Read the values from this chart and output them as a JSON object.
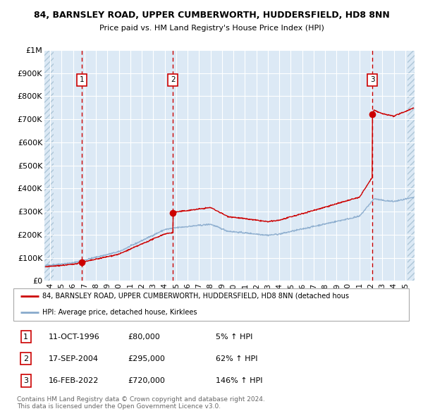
{
  "title1": "84, BARNSLEY ROAD, UPPER CUMBERWORTH, HUDDERSFIELD, HD8 8NN",
  "title2": "Price paid vs. HM Land Registry's House Price Index (HPI)",
  "bg_color": "#dce9f5",
  "hatch_color": "#aec6d8",
  "grid_color": "#ffffff",
  "red_line_color": "#cc0000",
  "blue_line_color": "#88aacc",
  "sale_marker_color": "#cc0000",
  "vline_color": "#cc0000",
  "ylim": [
    0,
    1000000
  ],
  "yticks": [
    0,
    100000,
    200000,
    300000,
    400000,
    500000,
    600000,
    700000,
    800000,
    900000,
    1000000
  ],
  "ytick_labels": [
    "£0",
    "£100K",
    "£200K",
    "£300K",
    "£400K",
    "£500K",
    "£600K",
    "£700K",
    "£800K",
    "£900K",
    "£1M"
  ],
  "xlim_start": 1993.5,
  "xlim_end": 2025.8,
  "xticks": [
    1994,
    1995,
    1996,
    1997,
    1998,
    1999,
    2000,
    2001,
    2002,
    2003,
    2004,
    2005,
    2006,
    2007,
    2008,
    2009,
    2010,
    2011,
    2012,
    2013,
    2014,
    2015,
    2016,
    2017,
    2018,
    2019,
    2020,
    2021,
    2022,
    2023,
    2024,
    2025
  ],
  "xtick_labels": [
    "94",
    "95",
    "96",
    "97",
    "98",
    "99",
    "00",
    "01",
    "02",
    "03",
    "04",
    "05",
    "06",
    "07",
    "08",
    "09",
    "10",
    "11",
    "12",
    "13",
    "14",
    "15",
    "16",
    "17",
    "18",
    "19",
    "20",
    "21",
    "22",
    "23",
    "24",
    "25"
  ],
  "sale1_x": 1996.78,
  "sale1_y": 80000,
  "sale2_x": 2004.71,
  "sale2_y": 295000,
  "sale3_x": 2022.12,
  "sale3_y": 720000,
  "legend_line1": "84, BARNSLEY ROAD, UPPER CUMBERWORTH, HUDDERSFIELD, HD8 8NN (detached hous",
  "legend_line2": "HPI: Average price, detached house, Kirklees",
  "table_rows": [
    [
      "1",
      "11-OCT-1996",
      "£80,000",
      "5% ↑ HPI"
    ],
    [
      "2",
      "17-SEP-2004",
      "£295,000",
      "62% ↑ HPI"
    ],
    [
      "3",
      "16-FEB-2022",
      "£720,000",
      "146% ↑ HPI"
    ]
  ],
  "footer": "Contains HM Land Registry data © Crown copyright and database right 2024.\nThis data is licensed under the Open Government Licence v3.0."
}
